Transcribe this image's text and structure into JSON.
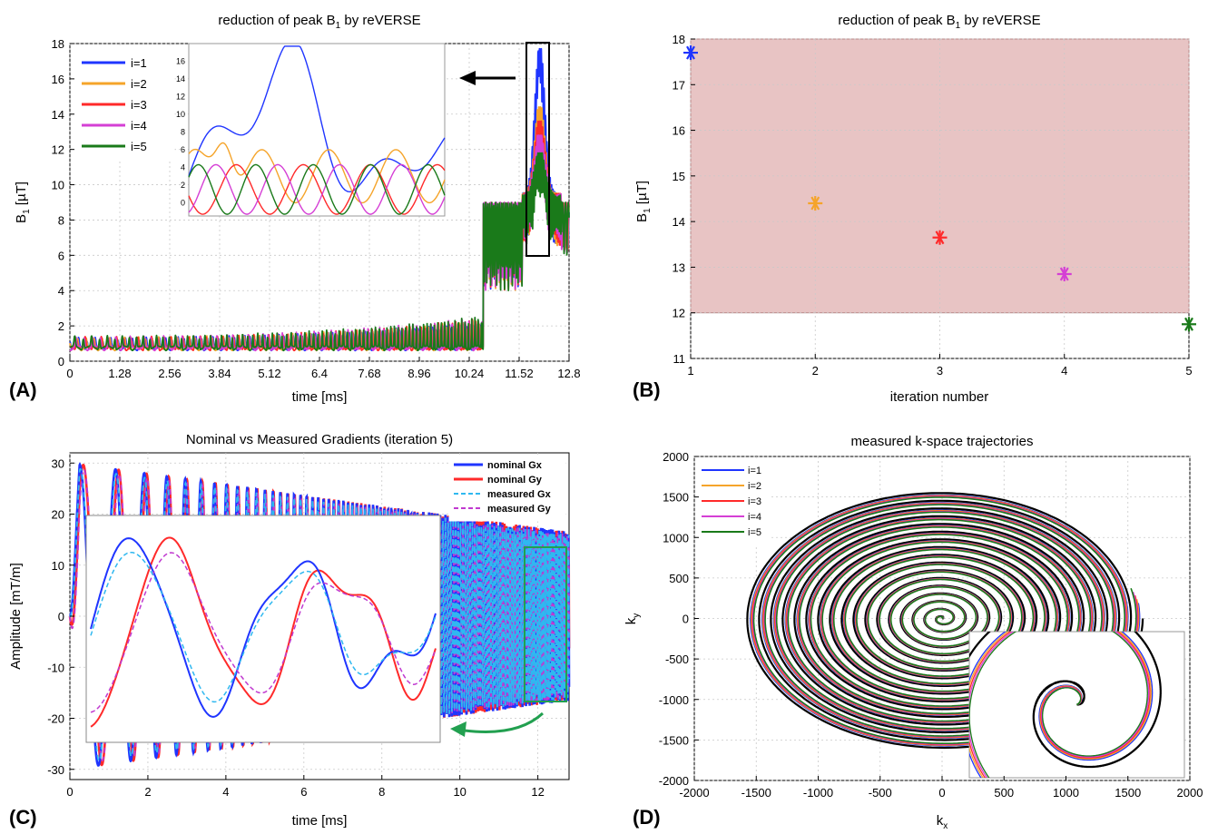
{
  "figure": {
    "panel_labels": [
      "(A)",
      "(B)",
      "(C)",
      "(D)"
    ]
  },
  "chart_data": [
    {
      "id": "A",
      "type": "line",
      "title": "reduction of peak B1 by reVERSE",
      "title_base": "reduction of peak B",
      "title_sub": "1",
      "title_tail": " by reVERSE",
      "xlabel": "time [ms]",
      "ylabel": "B1 [µT]",
      "ylabel_base": "B",
      "ylabel_sub": "1",
      "ylabel_tail": " [µT]",
      "xlim": [
        0,
        12.8
      ],
      "ylim": [
        0,
        18
      ],
      "xticks": [
        "0",
        "1.28",
        "2.56",
        "3.84",
        "5.12",
        "6.4",
        "7.68",
        "8.96",
        "10.24",
        "11.52",
        "12.8"
      ],
      "yticks": [
        "0",
        "2",
        "4",
        "6",
        "8",
        "10",
        "12",
        "14",
        "16",
        "18"
      ],
      "grid": true,
      "legend": "top-left",
      "series": [
        {
          "name": "i=1",
          "color": "#1f35ff",
          "peak": 17.7
        },
        {
          "name": "i=2",
          "color": "#f5a42a",
          "peak": 14.4
        },
        {
          "name": "i=3",
          "color": "#ff2a2a",
          "peak": 13.6
        },
        {
          "name": "i=4",
          "color": "#d53fd5",
          "peak": 12.8
        },
        {
          "name": "i=5",
          "color": "#1a7a1a",
          "peak": 11.8
        }
      ],
      "inset": {
        "yticks": [
          "0",
          "2",
          "4",
          "6",
          "8",
          "10",
          "12",
          "14",
          "16"
        ],
        "source_window_ms": [
          11.85,
          12.4
        ]
      }
    },
    {
      "id": "B",
      "type": "scatter",
      "title": "reduction of peak B1 by reVERSE",
      "title_base": "reduction of peak B",
      "title_sub": "1",
      "title_tail": " by reVERSE",
      "xlabel": "iteration number",
      "ylabel": "B1 [µT]",
      "ylabel_base": "B",
      "ylabel_sub": "1",
      "ylabel_tail": " [µT]",
      "xlim": [
        1,
        5
      ],
      "ylim": [
        11,
        18
      ],
      "xticks": [
        "1",
        "2",
        "3",
        "4",
        "5"
      ],
      "yticks": [
        "11",
        "12",
        "13",
        "14",
        "15",
        "16",
        "17",
        "18"
      ],
      "grid": true,
      "band": {
        "y0": 12,
        "y1": 18,
        "color": "#e8c4c4",
        "edge": "#b88888"
      },
      "x": [
        1,
        2,
        3,
        4,
        5
      ],
      "y": [
        17.7,
        14.4,
        13.65,
        12.85,
        11.75
      ],
      "colors": [
        "#1f35ff",
        "#f5a42a",
        "#ff2a2a",
        "#d53fd5",
        "#1a7a1a"
      ]
    },
    {
      "id": "C",
      "type": "line",
      "title": "Nominal vs Measured Gradients (iteration 5)",
      "xlabel": "time [ms]",
      "ylabel": "Amplitude [mT/m]",
      "xlim": [
        0,
        12.8
      ],
      "ylim": [
        -32,
        32
      ],
      "xticks": [
        "0",
        "2",
        "4",
        "6",
        "8",
        "10",
        "12"
      ],
      "yticks": [
        "-30",
        "-20",
        "-10",
        "0",
        "10",
        "20",
        "30"
      ],
      "grid": true,
      "legend": "top-right",
      "series": [
        {
          "name": "nominal Gx",
          "color": "#1f35ff",
          "dash": false
        },
        {
          "name": "nominal Gy",
          "color": "#ff2a2a",
          "dash": false
        },
        {
          "name": "measured Gx",
          "color": "#2fb8f0",
          "dash": true
        },
        {
          "name": "measured Gy",
          "color": "#c03ad0",
          "dash": true
        }
      ],
      "amplitude_max": 30,
      "inset": {
        "source_window_ms": [
          11.65,
          12.8
        ]
      }
    },
    {
      "id": "D",
      "type": "line",
      "title": "measured k-space trajectories",
      "xlabel": "kx",
      "xlabel_base": "k",
      "xlabel_sub": "x",
      "ylabel": "ky",
      "ylabel_base": "k",
      "ylabel_sub": "y",
      "xlim": [
        -2000,
        2000
      ],
      "ylim": [
        -2000,
        2000
      ],
      "xticks": [
        "-2000",
        "-1500",
        "-1000",
        "-500",
        "0",
        "500",
        "1000",
        "1500",
        "2000"
      ],
      "yticks": [
        "-2000",
        "-1500",
        "-1000",
        "-500",
        "0",
        "500",
        "1000",
        "1500",
        "2000"
      ],
      "grid": true,
      "legend": "top-left",
      "series": [
        {
          "name": "i=1",
          "color": "#1f35ff"
        },
        {
          "name": "i=2",
          "color": "#f5a42a"
        },
        {
          "name": "i=3",
          "color": "#ff2a2a"
        },
        {
          "name": "i=4",
          "color": "#d53fd5"
        },
        {
          "name": "i=5",
          "color": "#1a7a1a"
        }
      ],
      "nominal_color": "#000000",
      "max_radius": 1620
    }
  ]
}
